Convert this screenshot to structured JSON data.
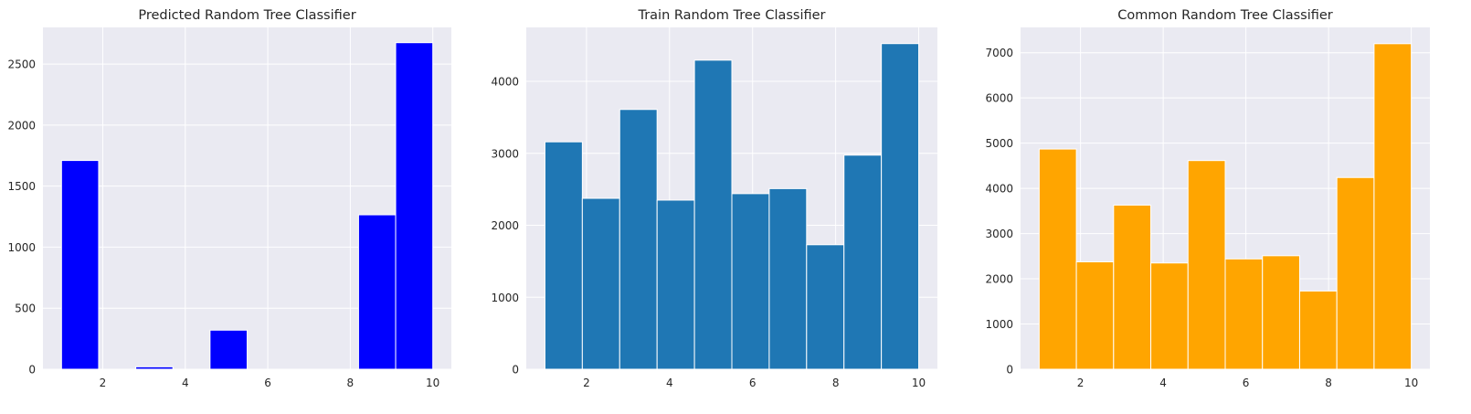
{
  "chart_data": [
    {
      "type": "bar",
      "title": "Predicted Random Tree Classifier",
      "bar_color": "#0000ff",
      "bin_edges": [
        1.0,
        1.9,
        2.8,
        3.7,
        4.6,
        5.5,
        6.4,
        7.3,
        8.2,
        9.1,
        10.0
      ],
      "values": [
        1710,
        0,
        20,
        0,
        320,
        0,
        0,
        0,
        1265,
        2675
      ],
      "xlim": [
        0.55,
        10.45
      ],
      "ylim": [
        0,
        2800
      ],
      "xticks": [
        2,
        4,
        6,
        8,
        10
      ],
      "yticks": [
        0,
        500,
        1000,
        1500,
        2000,
        2500
      ],
      "grid": true
    },
    {
      "type": "bar",
      "title": "Train Random Tree Classifier",
      "bar_color": "#1f77b4",
      "bin_edges": [
        1.0,
        1.9,
        2.8,
        3.7,
        4.6,
        5.5,
        6.4,
        7.3,
        8.2,
        9.1,
        10.0
      ],
      "values": [
        3160,
        2375,
        3610,
        2350,
        4295,
        2440,
        2510,
        1730,
        2975,
        4525
      ],
      "xlim": [
        0.55,
        10.45
      ],
      "ylim": [
        0,
        4750
      ],
      "xticks": [
        2,
        4,
        6,
        8,
        10
      ],
      "yticks": [
        0,
        1000,
        2000,
        3000,
        4000
      ],
      "grid": true
    },
    {
      "type": "bar",
      "title": "Common Random Tree Classifier",
      "bar_color": "#ffa500",
      "bin_edges": [
        1.0,
        1.9,
        2.8,
        3.7,
        4.6,
        5.5,
        6.4,
        7.3,
        8.2,
        9.1,
        10.0
      ],
      "values": [
        4870,
        2375,
        3630,
        2350,
        4615,
        2440,
        2510,
        1730,
        4240,
        7200
      ],
      "xlim": [
        0.55,
        10.45
      ],
      "ylim": [
        0,
        7560
      ],
      "xticks": [
        2,
        4,
        6,
        8,
        10
      ],
      "yticks": [
        0,
        1000,
        2000,
        3000,
        4000,
        5000,
        6000,
        7000
      ],
      "grid": true
    }
  ]
}
